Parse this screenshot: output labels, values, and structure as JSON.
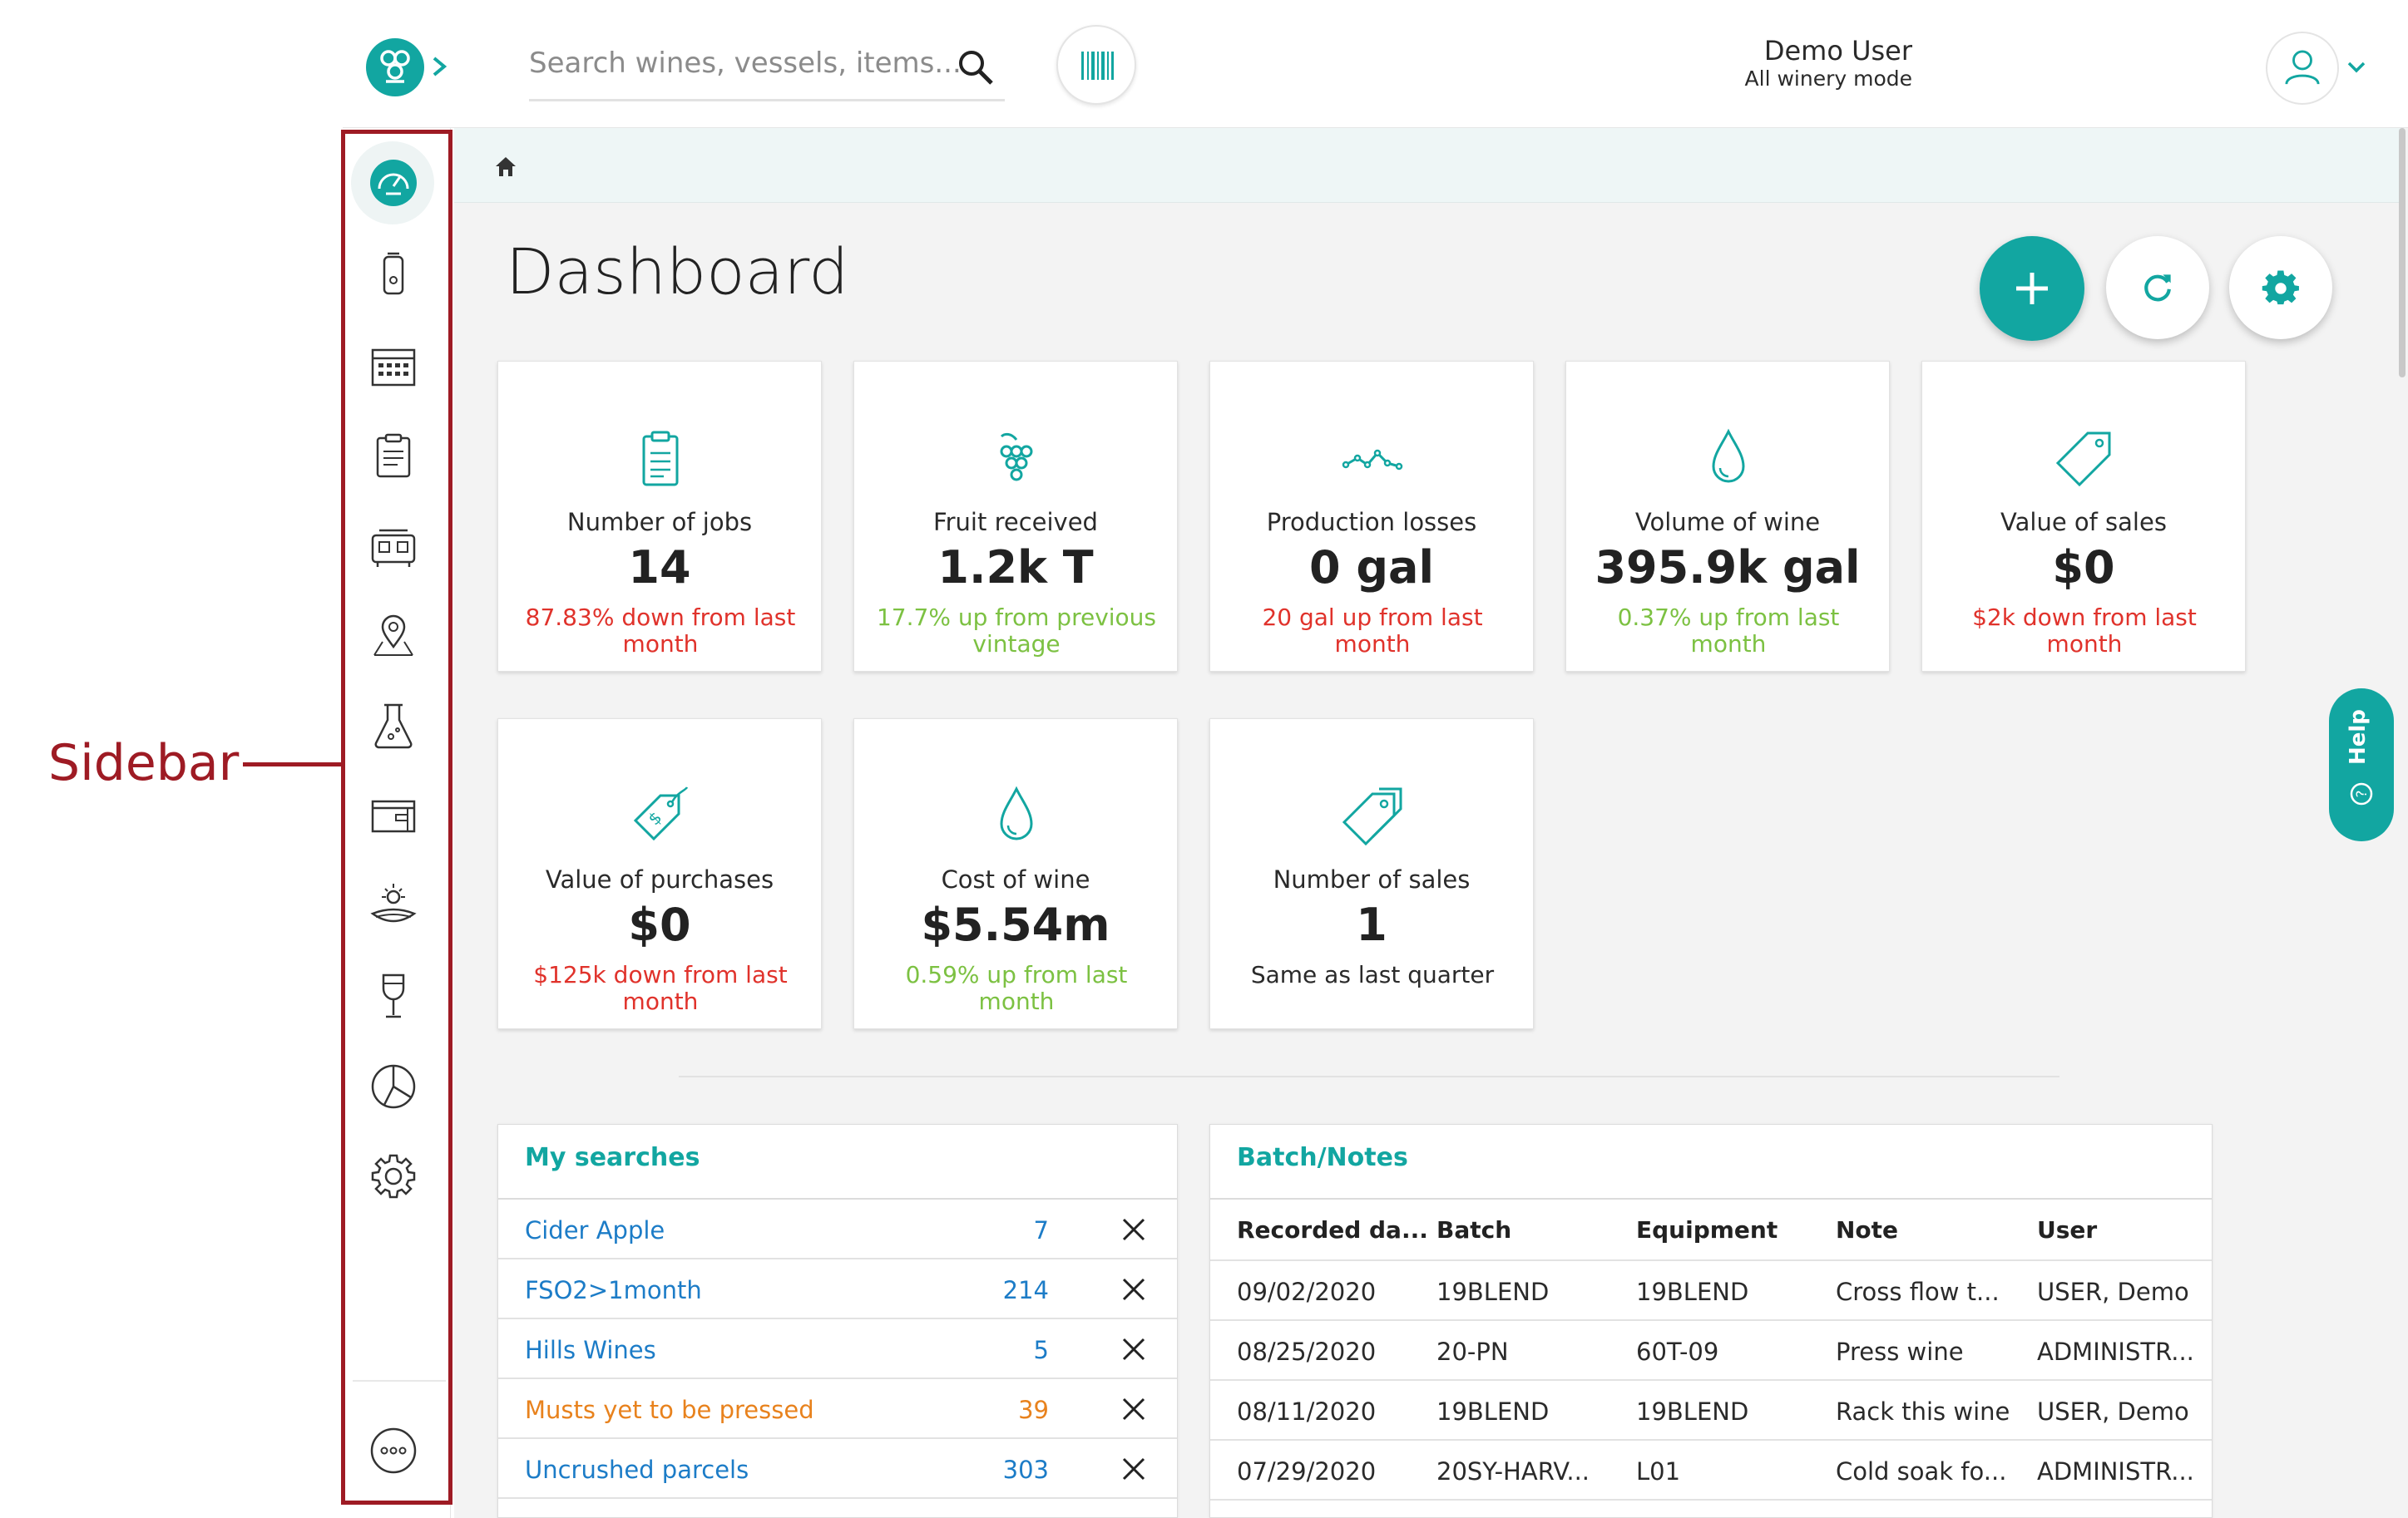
{
  "callout": {
    "label": "Sidebar"
  },
  "header": {
    "search_placeholder": "Search wines, vessels, items...",
    "user_name": "Demo User",
    "user_mode": "All winery mode"
  },
  "sidebar": {
    "items": [
      {
        "icon": "dashboard-icon",
        "active": true
      },
      {
        "icon": "vessel-icon"
      },
      {
        "icon": "calendar-icon"
      },
      {
        "icon": "clipboard-icon"
      },
      {
        "icon": "tanks-icon"
      },
      {
        "icon": "location-pin-icon"
      },
      {
        "icon": "flask-icon"
      },
      {
        "icon": "cellar-box-icon"
      },
      {
        "icon": "vineyard-icon"
      },
      {
        "icon": "wine-glass-icon"
      },
      {
        "icon": "pie-chart-icon"
      },
      {
        "icon": "gear-icon"
      },
      {
        "icon": "more-icon"
      }
    ]
  },
  "page": {
    "title": "Dashboard"
  },
  "help": {
    "label": "Help"
  },
  "cards": [
    {
      "label": "Number of jobs",
      "value": "14",
      "delta": "87.83% down from last month",
      "tone": "red",
      "icon": "clipboard-icon"
    },
    {
      "label": "Fruit received",
      "value": "1.2k T",
      "delta": "17.7% up from previous vintage",
      "tone": "green",
      "icon": "grapes-icon"
    },
    {
      "label": "Production losses",
      "value": "0 gal",
      "delta": "20 gal up from last month",
      "tone": "red",
      "icon": "trend-line-icon"
    },
    {
      "label": "Volume of wine",
      "value": "395.9k gal",
      "delta": "0.37% up from last month",
      "tone": "green",
      "icon": "droplet-icon"
    },
    {
      "label": "Value of sales",
      "value": "$0",
      "delta": "$2k down from last month",
      "tone": "red",
      "icon": "price-tag-icon"
    },
    {
      "label": "Value of purchases",
      "value": "$0",
      "delta": "$125k down from last month",
      "tone": "red",
      "icon": "dollar-tag-icon"
    },
    {
      "label": "Cost of wine",
      "value": "$5.54m",
      "delta": "0.59% up from last month",
      "tone": "green",
      "icon": "droplet-icon"
    },
    {
      "label": "Number of sales",
      "value": "1",
      "delta": "Same as last quarter",
      "tone": "dark",
      "icon": "tags-icon"
    }
  ],
  "my_searches": {
    "title": "My searches",
    "rows": [
      {
        "name": "Cider Apple",
        "count": "7",
        "tone": "blue"
      },
      {
        "name": "FSO2>1month",
        "count": "214",
        "tone": "blue"
      },
      {
        "name": "Hills Wines",
        "count": "5",
        "tone": "blue"
      },
      {
        "name": "Musts yet to be pressed",
        "count": "39",
        "tone": "orange"
      },
      {
        "name": "Uncrushed parcels",
        "count": "303",
        "tone": "blue"
      }
    ]
  },
  "batch_notes": {
    "title": "Batch/Notes",
    "columns": [
      "Recorded da...",
      "Batch",
      "Equipment",
      "Note",
      "User"
    ],
    "rows": [
      [
        "09/02/2020",
        "19BLEND",
        "19BLEND",
        "Cross flow t...",
        "USER, Demo"
      ],
      [
        "08/25/2020",
        "20-PN",
        "60T-09",
        "Press wine",
        "ADMINISTR..."
      ],
      [
        "08/11/2020",
        "19BLEND",
        "19BLEND",
        "Rack this wine",
        "USER, Demo"
      ],
      [
        "07/29/2020",
        "20SY-HARV...",
        "L01",
        "Cold soak fo...",
        "ADMINISTR..."
      ]
    ]
  },
  "colors": {
    "accent": "#12a6a1",
    "callout": "#9e1b24",
    "down": "#e0322b",
    "up": "#7cc142",
    "link": "#1c7cc7",
    "warning": "#e8821d"
  }
}
